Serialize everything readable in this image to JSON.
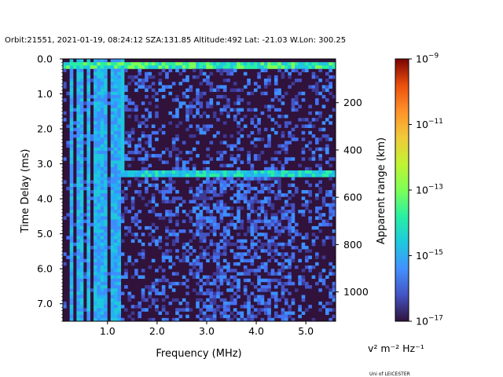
{
  "chart_data": {
    "type": "heatmap",
    "title": "Orbit:21551, 2021-01-19, 08:24:12 SZA:131.85 Altitude:492 Lat: -21.03 W.Lon: 300.25",
    "xlabel": "Frequency (MHz)",
    "ylabel": "Time Delay (ms)",
    "y2label": "Apparent range (km)",
    "xlim": [
      0.1,
      5.6
    ],
    "ylim": [
      7.5,
      0.0
    ],
    "y2lim": [
      15,
      1124
    ],
    "x_ticks": [
      "1.0",
      "2.0",
      "3.0",
      "4.0",
      "5.0"
    ],
    "x_tick_values": [
      1.0,
      2.0,
      3.0,
      4.0,
      5.0
    ],
    "y_ticks": [
      "0.0",
      "1.0",
      "2.0",
      "3.0",
      "4.0",
      "5.0",
      "6.0",
      "7.0"
    ],
    "y_tick_values": [
      0,
      1,
      2,
      3,
      4,
      5,
      6,
      7
    ],
    "y2_ticks": [
      "200",
      "400",
      "600",
      "800",
      "1000"
    ],
    "y2_tick_values": [
      200,
      400,
      600,
      800,
      1000
    ],
    "colorbar": {
      "label": "v² m⁻² Hz⁻¹",
      "scale": "log",
      "range": [
        1e-17,
        1e-09
      ],
      "ticks": [
        {
          "base": "10",
          "exp": "−9",
          "log": -9
        },
        {
          "base": "10",
          "exp": "−11",
          "log": -11
        },
        {
          "base": "10",
          "exp": "−13",
          "log": -13
        },
        {
          "base": "10",
          "exp": "−15",
          "log": -15
        },
        {
          "base": "10",
          "exp": "−17",
          "log": -17
        }
      ],
      "colormap": "turbo"
    },
    "features": {
      "surface_echo_delay_ms": 3.3,
      "ground_echo_start_mhz": 1.3,
      "plasma_lines_mhz": [
        0.25,
        0.45,
        0.6,
        0.75,
        0.85,
        0.95,
        1.1,
        1.2
      ],
      "transmit_pulse_delay_ms": [
        0.1,
        0.25
      ]
    }
  },
  "credit": "Uni of LEICESTER"
}
